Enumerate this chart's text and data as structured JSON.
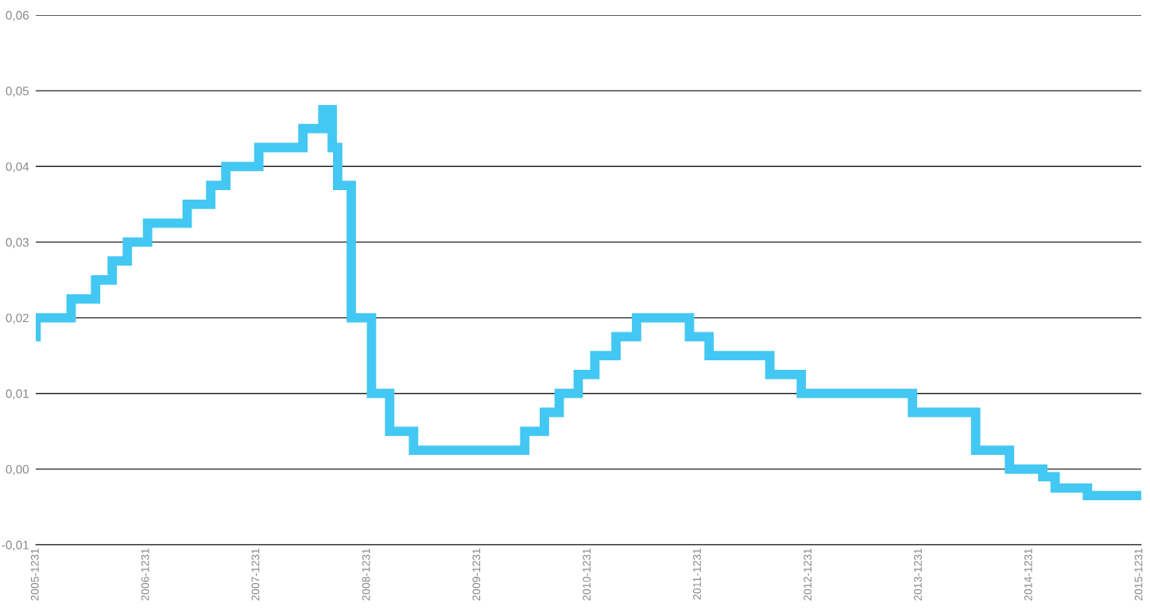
{
  "chart_data": {
    "type": "step",
    "x": [
      "2005-12-31",
      "2006-01-01",
      "2006-04-27",
      "2006-07-17",
      "2006-09-10",
      "2006-10-30",
      "2007-01-05",
      "2007-05-16",
      "2007-08-02",
      "2007-09-21",
      "2008-01-08",
      "2008-06-02",
      "2008-08-07",
      "2008-09-07",
      "2008-09-25",
      "2008-11-09",
      "2009-01-15",
      "2009-03-16",
      "2009-06-03",
      "2010-06-06",
      "2010-08-10",
      "2010-09-28",
      "2010-11-30",
      "2011-01-24",
      "2011-04-04",
      "2011-06-11",
      "2011-12-03",
      "2012-02-06",
      "2012-08-25",
      "2012-12-07",
      "2013-12-10",
      "2014-07-07",
      "2014-10-27",
      "2015-02-14",
      "2015-03-27",
      "2015-07-12",
      "2016-01-06"
    ],
    "series": [
      {
        "color": "#43c8f3",
        "values": [
          0.0175,
          0.02,
          0.0225,
          0.025,
          0.0275,
          0.03,
          0.0325,
          0.035,
          0.0375,
          0.04,
          0.0425,
          0.045,
          0.0475,
          0.0425,
          0.0375,
          0.02,
          0.01,
          0.005,
          0.0025,
          0.005,
          0.0075,
          0.01,
          0.0125,
          0.015,
          0.0175,
          0.02,
          0.0175,
          0.015,
          0.0125,
          0.01,
          0.0075,
          0.0025,
          0.0,
          -0.001,
          -0.0025,
          -0.0035,
          -0.0035
        ]
      }
    ],
    "xlim": [
      "2005-12-31",
      "2016-01-06"
    ],
    "xticks": [
      {
        "value": "2005-12-31",
        "label": "2005-1231"
      },
      {
        "value": "2006-12-31",
        "label": "2006-1231"
      },
      {
        "value": "2007-12-31",
        "label": "2007-1231"
      },
      {
        "value": "2008-12-31",
        "label": "2008-1231"
      },
      {
        "value": "2009-12-31",
        "label": "2009-1231"
      },
      {
        "value": "2010-12-31",
        "label": "2010-1231"
      },
      {
        "value": "2011-12-31",
        "label": "2011-1231"
      },
      {
        "value": "2012-12-31",
        "label": "2012-1231"
      },
      {
        "value": "2013-12-31",
        "label": "2013-1231"
      },
      {
        "value": "2014-12-31",
        "label": "2014-1231"
      },
      {
        "value": "2015-12-31",
        "label": "2015-1231"
      }
    ],
    "ylim": [
      -0.01,
      0.06
    ],
    "yticks": [
      {
        "value": -0.01,
        "label": "-0,01"
      },
      {
        "value": 0.0,
        "label": "0,00"
      },
      {
        "value": 0.01,
        "label": "0,01"
      },
      {
        "value": 0.02,
        "label": "0,02"
      },
      {
        "value": 0.03,
        "label": "0,03"
      },
      {
        "value": 0.04,
        "label": "0,04"
      },
      {
        "value": 0.05,
        "label": "0,05"
      },
      {
        "value": 0.06,
        "label": "0,06"
      }
    ],
    "grid": "y",
    "line_style": "solid"
  }
}
